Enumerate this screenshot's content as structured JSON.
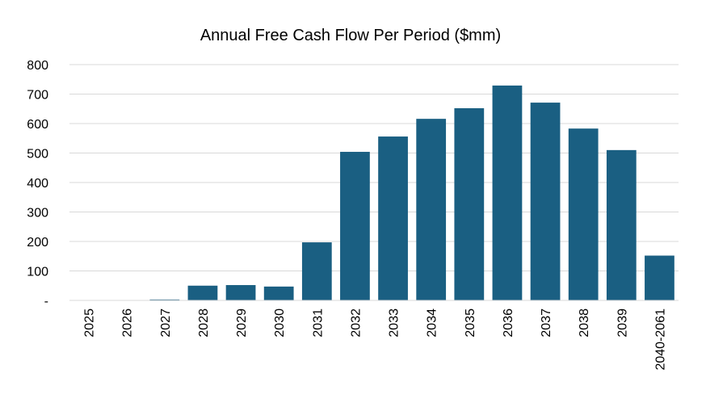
{
  "chart_data": {
    "type": "bar",
    "title": "Annual Free Cash Flow Per Period ($mm)",
    "xlabel": "",
    "ylabel": "",
    "ylim": [
      0,
      800
    ],
    "yticks": [
      0,
      100,
      200,
      300,
      400,
      500,
      600,
      700,
      800
    ],
    "ytick_labels": [
      "-",
      "100",
      "200",
      "300",
      "400",
      "500",
      "600",
      "700",
      "800"
    ],
    "categories": [
      "2025",
      "2026",
      "2027",
      "2028",
      "2029",
      "2030",
      "2031",
      "2032",
      "2033",
      "2034",
      "2035",
      "2036",
      "2037",
      "2038",
      "2039",
      "2040-2061"
    ],
    "values": [
      0,
      0,
      3,
      50,
      52,
      47,
      197,
      504,
      556,
      616,
      652,
      729,
      671,
      583,
      510,
      152
    ],
    "grid": true,
    "legend": "none",
    "bar_color": "#1a5f82"
  }
}
